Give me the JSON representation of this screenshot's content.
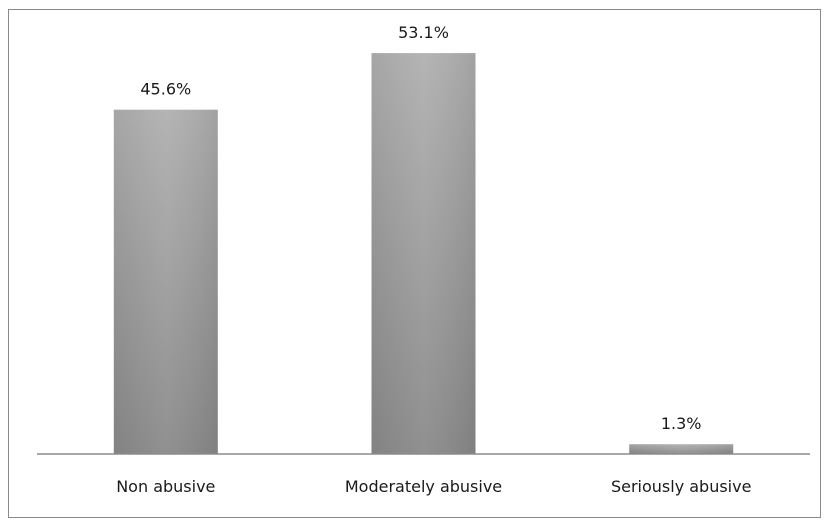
{
  "chart_data": {
    "type": "bar",
    "categories": [
      "Non abusive",
      "Moderately abusive",
      "Seriously abusive"
    ],
    "values": [
      45.6,
      53.1,
      1.3
    ],
    "data_labels": [
      "45.6%",
      "53.1%",
      "1.3%"
    ],
    "title": "",
    "xlabel": "",
    "ylabel": "",
    "ylim": [
      0,
      60
    ],
    "grid": false,
    "legend": "none",
    "bar_color_top": "#b0b0b0",
    "bar_color_bottom": "#8a8a8a",
    "axis_color": "#8c8c8c"
  }
}
